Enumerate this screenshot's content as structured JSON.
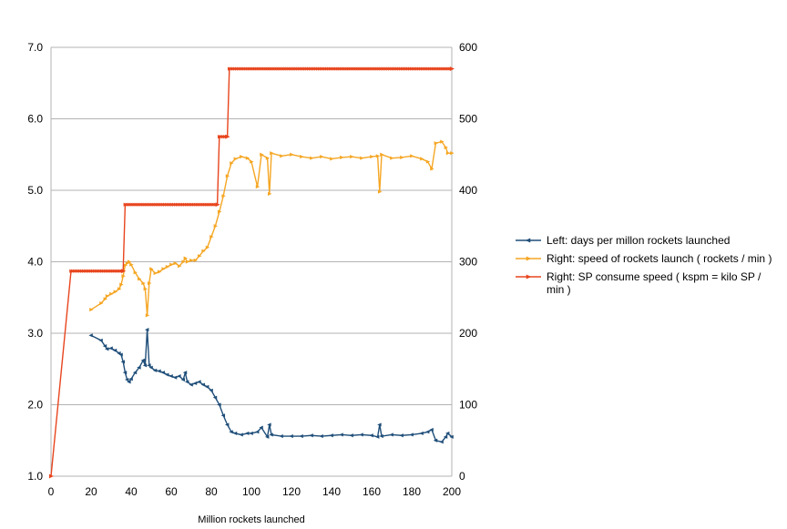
{
  "chart_data": {
    "type": "line",
    "title": "",
    "xlabel": "Million rockets launched",
    "ylabel_left": "",
    "ylabel_right": "",
    "xlim": [
      0,
      200
    ],
    "ylim_left": [
      1.0,
      7.0
    ],
    "ylim_right": [
      0,
      600
    ],
    "x_ticks": [
      "0",
      "20",
      "40",
      "60",
      "80",
      "100",
      "120",
      "140",
      "160",
      "180",
      "200"
    ],
    "y_left_ticks": [
      "1.0",
      "2.0",
      "3.0",
      "4.0",
      "5.0",
      "6.0",
      "7.0"
    ],
    "y_right_ticks": [
      "0",
      "100",
      "200",
      "300",
      "400",
      "500",
      "600"
    ],
    "grid": true,
    "legend_position": "right",
    "series": [
      {
        "name": "Left: days per millon rockets launched",
        "axis": "left",
        "color": "#1f4e79",
        "marker": "triangle-left",
        "x": [
          20,
          25,
          27,
          28,
          30,
          32,
          34,
          35,
          36,
          37,
          38,
          39,
          40,
          42,
          44,
          46,
          47,
          48,
          49,
          50,
          52,
          54,
          56,
          58,
          60,
          62,
          64,
          66,
          67,
          68,
          70,
          72,
          74,
          76,
          78,
          80,
          82,
          84,
          86,
          88,
          90,
          92,
          95,
          98,
          100,
          103,
          105,
          108,
          109,
          110,
          115,
          120,
          125,
          130,
          135,
          140,
          145,
          150,
          155,
          160,
          163,
          164,
          165,
          170,
          175,
          180,
          185,
          188,
          190,
          192,
          195,
          197,
          198,
          200
        ],
        "values": [
          2.97,
          2.9,
          2.82,
          2.78,
          2.79,
          2.76,
          2.72,
          2.7,
          2.6,
          2.45,
          2.35,
          2.32,
          2.36,
          2.45,
          2.52,
          2.62,
          2.55,
          3.05,
          2.55,
          2.52,
          2.48,
          2.47,
          2.45,
          2.42,
          2.4,
          2.38,
          2.4,
          2.35,
          2.45,
          2.32,
          2.28,
          2.3,
          2.32,
          2.28,
          2.25,
          2.2,
          2.1,
          2.0,
          1.85,
          1.72,
          1.62,
          1.6,
          1.58,
          1.6,
          1.6,
          1.62,
          1.68,
          1.55,
          1.72,
          1.58,
          1.56,
          1.56,
          1.56,
          1.57,
          1.56,
          1.57,
          1.58,
          1.57,
          1.58,
          1.57,
          1.55,
          1.72,
          1.56,
          1.58,
          1.57,
          1.58,
          1.6,
          1.62,
          1.65,
          1.5,
          1.48,
          1.55,
          1.6,
          1.55
        ]
      },
      {
        "name": "Right: speed of rockets launch ( rockets / min )",
        "axis": "right",
        "color": "#f5a623",
        "marker": "triangle-right",
        "x": [
          20,
          25,
          27,
          28,
          30,
          32,
          34,
          35,
          36,
          37,
          38,
          39,
          40,
          42,
          44,
          46,
          47,
          48,
          49,
          50,
          52,
          54,
          56,
          58,
          60,
          62,
          64,
          66,
          67,
          68,
          70,
          72,
          74,
          76,
          78,
          80,
          82,
          84,
          86,
          88,
          90,
          92,
          95,
          98,
          100,
          103,
          105,
          108,
          109,
          110,
          115,
          120,
          125,
          130,
          135,
          140,
          145,
          150,
          155,
          160,
          163,
          164,
          165,
          170,
          175,
          180,
          185,
          188,
          190,
          192,
          195,
          197,
          198,
          200
        ],
        "values": [
          233,
          242,
          248,
          252,
          255,
          258,
          262,
          268,
          280,
          295,
          298,
          300,
          296,
          285,
          276,
          270,
          262,
          225,
          270,
          290,
          284,
          286,
          290,
          293,
          296,
          298,
          294,
          300,
          305,
          300,
          302,
          302,
          308,
          315,
          320,
          335,
          350,
          370,
          392,
          420,
          438,
          444,
          447,
          445,
          440,
          405,
          450,
          445,
          395,
          452,
          448,
          450,
          447,
          445,
          447,
          444,
          446,
          447,
          445,
          447,
          448,
          398,
          450,
          445,
          446,
          448,
          444,
          440,
          430,
          466,
          468,
          460,
          452,
          452
        ]
      },
      {
        "name": "Right: SP consume speed ( kspm = kilo SP / min )",
        "axis": "right",
        "color": "#e8451e",
        "marker": "triangle-right",
        "x": [
          0,
          10,
          36,
          37,
          83,
          84,
          88,
          89,
          200
        ],
        "values": [
          0,
          287,
          287,
          380,
          380,
          475,
          475,
          570,
          570
        ]
      }
    ]
  }
}
